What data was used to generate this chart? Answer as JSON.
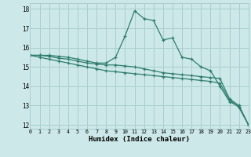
{
  "xlabel": "Humidex (Indice chaleur)",
  "background_color": "#cce8e8",
  "grid_color": "#aacece",
  "line_color": "#2e7d6e",
  "x_values": [
    0,
    1,
    2,
    3,
    4,
    5,
    6,
    7,
    8,
    9,
    10,
    11,
    12,
    13,
    14,
    15,
    16,
    17,
    18,
    19,
    20,
    21,
    22,
    23
  ],
  "series1": [
    15.6,
    15.6,
    15.6,
    15.55,
    15.5,
    15.4,
    15.3,
    15.2,
    15.2,
    15.5,
    16.6,
    17.9,
    17.5,
    17.4,
    16.4,
    16.5,
    15.5,
    15.4,
    15.0,
    14.8,
    14.0,
    13.2,
    12.95,
    12.0
  ],
  "series2": [
    15.6,
    15.6,
    15.55,
    15.45,
    15.4,
    15.3,
    15.2,
    15.15,
    15.1,
    15.1,
    15.05,
    15.0,
    14.9,
    14.8,
    14.7,
    14.65,
    14.6,
    14.55,
    14.5,
    14.45,
    14.4,
    13.35,
    13.0,
    12.0
  ],
  "series3": [
    15.6,
    15.5,
    15.4,
    15.3,
    15.2,
    15.1,
    15.0,
    14.9,
    14.8,
    14.75,
    14.7,
    14.65,
    14.6,
    14.55,
    14.5,
    14.45,
    14.4,
    14.35,
    14.3,
    14.25,
    14.15,
    13.3,
    12.9,
    12.0
  ],
  "xlim": [
    0,
    23
  ],
  "ylim": [
    11.8,
    18.3
  ],
  "yticks": [
    12,
    13,
    14,
    15,
    16,
    17,
    18
  ],
  "xticks": [
    0,
    1,
    2,
    3,
    4,
    5,
    6,
    7,
    8,
    9,
    10,
    11,
    12,
    13,
    14,
    15,
    16,
    17,
    18,
    19,
    20,
    21,
    22,
    23
  ],
  "marker": "+",
  "markersize": 3,
  "linewidth": 0.9
}
